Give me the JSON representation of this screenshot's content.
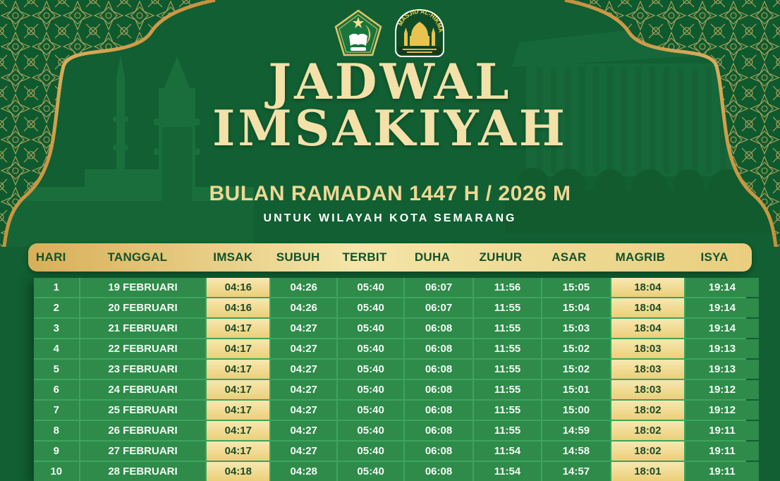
{
  "header": {
    "title_line1": "JADWAL",
    "title_line2": "IMSAKIYAH",
    "subtitle": "BULAN RAMADAN 1447 H / 2026 M",
    "region": "UNTUK WILAYAH KOTA SEMARANG",
    "logo_right_text": "MASJID AL-HIKMAH"
  },
  "colors": {
    "background_green": "#115f32",
    "row_green": "#2e8b4a",
    "grid_line_green": "#3ca45e",
    "gold_header": "#e9ce7f",
    "gold_cell": "#f0d98c",
    "title_cream": "#f3e1a9",
    "header_text_green": "#14512a",
    "ornament_gold": "#d9b569"
  },
  "icons": {
    "logo_left": "kemenag-emblem",
    "logo_right": "masjid-al-hikmah-emblem"
  },
  "table": {
    "columns": [
      "HARI",
      "TANGGAL",
      "IMSAK",
      "SUBUH",
      "TERBIT",
      "DUHA",
      "ZUHUR",
      "ASAR",
      "MAGRIB",
      "ISYA"
    ],
    "highlight_indices": [
      2,
      8
    ],
    "rows": [
      [
        "1",
        "19 FEBRUARI",
        "04:16",
        "04:26",
        "05:40",
        "06:07",
        "11:56",
        "15:05",
        "18:04",
        "19:14"
      ],
      [
        "2",
        "20 FEBRUARI",
        "04:16",
        "04:26",
        "05:40",
        "06:07",
        "11:55",
        "15:04",
        "18:04",
        "19:14"
      ],
      [
        "3",
        "21 FEBRUARI",
        "04:17",
        "04:27",
        "05:40",
        "06:08",
        "11:55",
        "15:03",
        "18:04",
        "19:14"
      ],
      [
        "4",
        "22 FEBRUARI",
        "04:17",
        "04:27",
        "05:40",
        "06:08",
        "11:55",
        "15:02",
        "18:03",
        "19:13"
      ],
      [
        "5",
        "23 FEBRUARI",
        "04:17",
        "04:27",
        "05:40",
        "06:08",
        "11:55",
        "15:02",
        "18:03",
        "19:13"
      ],
      [
        "6",
        "24 FEBRUARI",
        "04:17",
        "04:27",
        "05:40",
        "06:08",
        "11:55",
        "15:01",
        "18:03",
        "19:12"
      ],
      [
        "7",
        "25 FEBRUARI",
        "04:17",
        "04:27",
        "05:40",
        "06:08",
        "11:55",
        "15:00",
        "18:02",
        "19:12"
      ],
      [
        "8",
        "26 FEBRUARI",
        "04:17",
        "04:27",
        "05:40",
        "06:08",
        "11:55",
        "14:59",
        "18:02",
        "19:11"
      ],
      [
        "9",
        "27 FEBRUARI",
        "04:17",
        "04:27",
        "05:40",
        "06:08",
        "11:54",
        "14:58",
        "18:02",
        "19:11"
      ],
      [
        "10",
        "28 FEBRUARI",
        "04:18",
        "04:28",
        "05:40",
        "06:08",
        "11:54",
        "14:57",
        "18:01",
        "19:11"
      ]
    ]
  }
}
